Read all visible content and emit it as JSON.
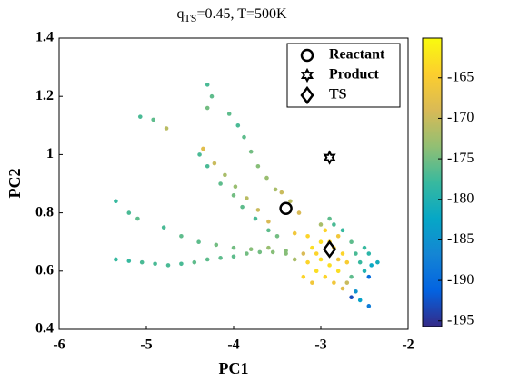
{
  "chart_data": {
    "type": "scatter",
    "title": {
      "main": "q",
      "sub": "TS",
      "rest": "=0.45, T=500K"
    },
    "x_label": "PC1",
    "y_label": "PC2",
    "xlim": [
      -6,
      -2
    ],
    "xticks": [
      -6,
      -5,
      -4,
      -3,
      -2
    ],
    "ylim": [
      0.4,
      1.4
    ],
    "yticks": [
      0.4,
      0.6,
      0.8,
      1,
      1.2,
      1.4
    ],
    "colormap": "parula",
    "clim": [
      -195.7,
      -160.1
    ],
    "cticks": [
      -195,
      -190,
      -185,
      -180,
      -175,
      -170,
      -165
    ],
    "x": [
      -5.07,
      -4.92,
      -4.77,
      -4.39,
      -4.3,
      -4.25,
      -4.3,
      -4.05,
      -3.95,
      -3.88,
      -3.8,
      -3.72,
      -3.62,
      -3.52,
      -4.35,
      -4.22,
      -4.1,
      -3.98,
      -3.85,
      -3.72,
      -3.6,
      -4.3,
      -4.15,
      -4.0,
      -3.9,
      -3.75,
      -3.6,
      -3.5,
      -5.35,
      -5.2,
      -5.1,
      -5.35,
      -5.2,
      -5.05,
      -4.9,
      -4.75,
      -4.6,
      -4.45,
      -4.3,
      -4.15,
      -4.0,
      -3.85,
      -3.7,
      -3.55,
      -3.4,
      -4.8,
      -4.6,
      -4.4,
      -4.2,
      -4.0,
      -3.8,
      -3.6,
      -3.3,
      -3.25,
      -3.35,
      -3.45,
      -3.15,
      -3.1,
      -3.05,
      -3.0,
      -2.95,
      -2.9,
      -2.85,
      -2.8,
      -2.8,
      -2.75,
      -2.7,
      -2.95,
      -3.05,
      -3.15,
      -3.2,
      -3.1,
      -3.0,
      -2.9,
      -2.85,
      -2.75,
      -2.65,
      -2.6,
      -2.55,
      -2.5,
      -2.45,
      -2.42,
      -2.5,
      -2.65,
      -2.7,
      -2.75,
      -2.6,
      -2.45,
      -2.45,
      -2.65,
      -2.55,
      -2.35,
      -2.8,
      -3.3,
      -3.2,
      -3.4,
      -2.9,
      -3.0,
      -2.85
    ],
    "y": [
      1.13,
      1.12,
      1.09,
      1.0,
      1.24,
      1.2,
      1.16,
      1.14,
      1.1,
      1.06,
      1.01,
      0.96,
      0.92,
      0.88,
      1.02,
      0.97,
      0.93,
      0.89,
      0.85,
      0.81,
      0.77,
      0.96,
      0.9,
      0.86,
      0.82,
      0.78,
      0.74,
      0.72,
      0.84,
      0.8,
      0.78,
      0.64,
      0.635,
      0.63,
      0.625,
      0.62,
      0.625,
      0.63,
      0.64,
      0.645,
      0.65,
      0.66,
      0.665,
      0.665,
      0.67,
      0.75,
      0.72,
      0.7,
      0.69,
      0.68,
      0.675,
      0.68,
      0.73,
      0.8,
      0.84,
      0.87,
      0.72,
      0.68,
      0.66,
      0.7,
      0.74,
      0.62,
      0.68,
      0.72,
      0.6,
      0.66,
      0.63,
      0.58,
      0.6,
      0.63,
      0.58,
      0.56,
      0.76,
      0.78,
      0.76,
      0.74,
      0.7,
      0.66,
      0.63,
      0.6,
      0.66,
      0.62,
      0.68,
      0.58,
      0.56,
      0.54,
      0.53,
      0.58,
      0.48,
      0.51,
      0.5,
      0.63,
      0.64,
      0.64,
      0.66,
      0.66,
      0.7,
      0.64,
      0.56
    ],
    "c": [
      -177,
      -176,
      -171,
      -177,
      -177,
      -176,
      -175,
      -176,
      -177,
      -176,
      -175,
      -174,
      -173,
      -172,
      -168,
      -170,
      -172,
      -173,
      -171,
      -170,
      -169,
      -177,
      -176,
      -175,
      -176,
      -177,
      -176,
      -175,
      -178,
      -177,
      -176,
      -178,
      -178,
      -177,
      -177,
      -177,
      -177,
      -176,
      -176,
      -176,
      -176,
      -175,
      -175,
      -174,
      -174,
      -177,
      -176,
      -176,
      -175,
      -175,
      -174,
      -173,
      -166,
      -169,
      -171,
      -170,
      -164,
      -163,
      -164,
      -163,
      -164,
      -163,
      -165,
      -166,
      -163,
      -164,
      -165,
      -164,
      -163,
      -164,
      -164,
      -166,
      -172,
      -176,
      -177,
      -178,
      -176,
      -177,
      -178,
      -180,
      -179,
      -182,
      -178,
      -176,
      -170,
      -168,
      -185,
      -190,
      -188,
      -193,
      -183,
      -181,
      -166,
      -172,
      -169,
      -174,
      -164,
      -163,
      -166
    ],
    "markers": [
      {
        "name": "Reactant",
        "marker": "circle",
        "x": -3.4,
        "y": 0.815
      },
      {
        "name": "Product",
        "marker": "hexagram",
        "x": -2.9,
        "y": 0.99
      },
      {
        "name": "TS",
        "marker": "diamond",
        "x": -2.9,
        "y": 0.675
      }
    ],
    "legend": "top-right"
  }
}
